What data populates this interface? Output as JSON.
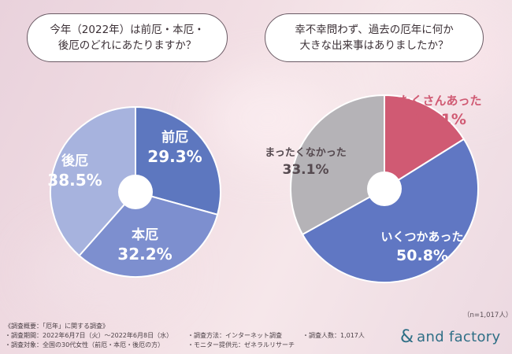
{
  "questions": {
    "q1": "今年（2022年）は前厄・本厄・\n後厄のどれにあたりますか？",
    "q2": "幸不幸問わず、過去の厄年に何か\n大きな出来事はありましたか？"
  },
  "sample_size": "（n=1,017人）",
  "footnotes": {
    "title": "《調査概要：「厄年」に関する調査》",
    "period": "・調査期間：2022年6月7日（火）〜2022年6月8日（水）",
    "target": "・調査対象：全国の30代女性（前厄・本厄・後厄の方）",
    "method": "・調査方法：インターネット調査",
    "provider": "・モニター提供元：ゼネラルリサーチ",
    "count": "・調査人数：1,017人"
  },
  "logo": {
    "mark": "&",
    "text": "and factory"
  },
  "chart_data": [
    {
      "type": "pie",
      "title": "今年（2022年）は前厄・本厄・後厄のどれにあたりますか？",
      "start": "top",
      "direction": "clockwise",
      "donut": true,
      "slices": [
        {
          "label": "前厄",
          "value": 29.3,
          "value_label": "29.3%",
          "color": "#5d77bf"
        },
        {
          "label": "本厄",
          "value": 32.2,
          "value_label": "32.2%",
          "color": "#7d8fcf"
        },
        {
          "label": "後厄",
          "value": 38.5,
          "value_label": "38.5%",
          "color": "#a7b3de"
        }
      ]
    },
    {
      "type": "pie",
      "title": "幸不幸問わず、過去の厄年に何か大きな出来事はありましたか？",
      "start": "top",
      "direction": "clockwise",
      "donut": true,
      "slices": [
        {
          "label": "たくさんあった",
          "value": 16.1,
          "value_label": "16.1%",
          "color": "#d05a73"
        },
        {
          "label": "いくつかあった",
          "value": 50.8,
          "value_label": "50.8%",
          "color": "#6077c3"
        },
        {
          "label": "まったくなかった",
          "value": 33.1,
          "value_label": "33.1%",
          "color": "#b5b3b7"
        }
      ]
    }
  ]
}
